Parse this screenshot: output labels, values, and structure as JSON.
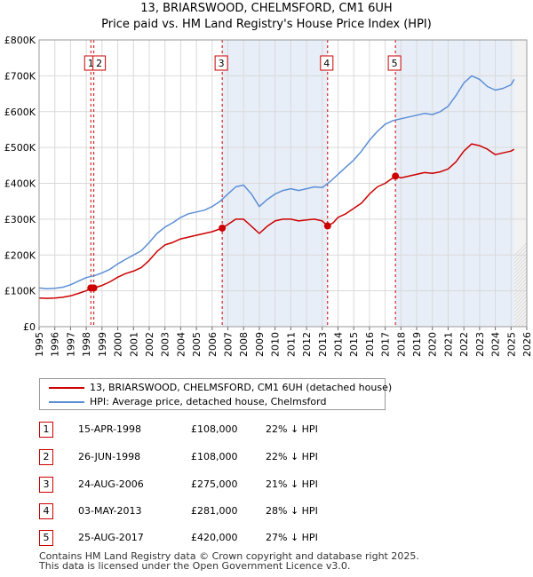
{
  "title_line1": "13, BRIARSWOOD, CHELMSFORD, CM1 6UH",
  "title_line2": "Price paid vs. HM Land Registry's House Price Index (HPI)",
  "chart_data": {
    "type": "line",
    "x_ticks": [
      "1995",
      "1996",
      "1997",
      "1998",
      "1999",
      "2000",
      "2001",
      "2002",
      "2003",
      "2004",
      "2005",
      "2006",
      "2007",
      "2008",
      "2009",
      "2010",
      "2011",
      "2012",
      "2013",
      "2014",
      "2015",
      "2016",
      "2017",
      "2018",
      "2019",
      "2020",
      "2021",
      "2022",
      "2023",
      "2024",
      "2025",
      "2026"
    ],
    "y_ticks": [
      "£0",
      "£100K",
      "£200K",
      "£300K",
      "£400K",
      "£500K",
      "£600K",
      "£700K",
      "£800K"
    ],
    "xlim": [
      1995,
      2026
    ],
    "ylim": [
      0,
      800000
    ],
    "grid": true,
    "colors": {
      "property": "#cc0000",
      "hpi": "#5b8fd6",
      "shade": "#e8eef8",
      "vline": "#cc0000"
    },
    "series": [
      {
        "name": "13, BRIARSWOOD, CHELMSFORD, CM1 6UH (detached house)",
        "x": [
          1995.0,
          1995.5,
          1996.0,
          1996.5,
          1997.0,
          1997.5,
          1998.0,
          1998.29,
          1998.48,
          1999.0,
          1999.5,
          2000.0,
          2000.5,
          2001.0,
          2001.5,
          2002.0,
          2002.5,
          2003.0,
          2003.5,
          2004.0,
          2004.5,
          2005.0,
          2005.5,
          2006.0,
          2006.64,
          2007.0,
          2007.5,
          2008.0,
          2008.5,
          2009.0,
          2009.5,
          2010.0,
          2010.5,
          2011.0,
          2011.5,
          2012.0,
          2012.5,
          2013.0,
          2013.34,
          2013.7,
          2014.0,
          2014.5,
          2015.0,
          2015.5,
          2016.0,
          2016.5,
          2017.0,
          2017.65,
          2018.0,
          2018.5,
          2019.0,
          2019.5,
          2020.0,
          2020.5,
          2021.0,
          2021.5,
          2022.0,
          2022.5,
          2023.0,
          2023.5,
          2024.0,
          2024.5,
          2025.0,
          2025.2
        ],
        "values": [
          80000,
          79000,
          80000,
          82000,
          86000,
          93000,
          100000,
          108000,
          108000,
          115000,
          125000,
          138000,
          148000,
          155000,
          165000,
          185000,
          210000,
          228000,
          235000,
          245000,
          250000,
          255000,
          260000,
          265000,
          275000,
          285000,
          300000,
          300000,
          280000,
          260000,
          280000,
          295000,
          300000,
          300000,
          295000,
          298000,
          300000,
          295000,
          281000,
          290000,
          305000,
          315000,
          330000,
          345000,
          370000,
          390000,
          400000,
          420000,
          415000,
          420000,
          425000,
          430000,
          428000,
          432000,
          440000,
          460000,
          490000,
          510000,
          505000,
          495000,
          480000,
          485000,
          490000,
          495000
        ]
      },
      {
        "name": "HPI: Average price, detached house, Chelmsford",
        "x": [
          1995.0,
          1995.5,
          1996.0,
          1996.5,
          1997.0,
          1997.5,
          1998.0,
          1998.5,
          1999.0,
          1999.5,
          2000.0,
          2000.5,
          2001.0,
          2001.5,
          2002.0,
          2002.5,
          2003.0,
          2003.5,
          2004.0,
          2004.5,
          2005.0,
          2005.5,
          2006.0,
          2006.5,
          2007.0,
          2007.5,
          2008.0,
          2008.5,
          2009.0,
          2009.5,
          2010.0,
          2010.5,
          2011.0,
          2011.5,
          2012.0,
          2012.5,
          2013.0,
          2013.5,
          2014.0,
          2014.5,
          2015.0,
          2015.5,
          2016.0,
          2016.5,
          2017.0,
          2017.5,
          2018.0,
          2018.5,
          2019.0,
          2019.5,
          2020.0,
          2020.5,
          2021.0,
          2021.5,
          2022.0,
          2022.5,
          2023.0,
          2023.5,
          2024.0,
          2024.5,
          2025.0,
          2025.2
        ],
        "values": [
          108000,
          106000,
          107000,
          110000,
          117000,
          127000,
          137000,
          142000,
          150000,
          160000,
          175000,
          188000,
          200000,
          212000,
          235000,
          260000,
          278000,
          290000,
          305000,
          315000,
          320000,
          325000,
          335000,
          350000,
          370000,
          390000,
          395000,
          370000,
          335000,
          355000,
          370000,
          380000,
          385000,
          380000,
          385000,
          390000,
          388000,
          405000,
          425000,
          445000,
          465000,
          490000,
          520000,
          545000,
          565000,
          575000,
          580000,
          585000,
          590000,
          595000,
          592000,
          600000,
          615000,
          645000,
          680000,
          700000,
          690000,
          670000,
          660000,
          665000,
          675000,
          690000
        ]
      }
    ],
    "sales": [
      {
        "id": "1",
        "x": 1998.29,
        "value": 108000
      },
      {
        "id": "2",
        "x": 1998.48,
        "value": 108000
      },
      {
        "id": "3",
        "x": 2006.64,
        "value": 275000
      },
      {
        "id": "4",
        "x": 2013.34,
        "value": 281000
      },
      {
        "id": "5",
        "x": 2017.65,
        "value": 420000
      }
    ],
    "shaded_spans": [
      [
        2006.64,
        2013.34
      ],
      [
        2017.65,
        2025.2
      ]
    ],
    "future_from": 2025.2
  },
  "legend": {
    "property_label": "13, BRIARSWOOD, CHELMSFORD, CM1 6UH (detached house)",
    "hpi_label": "HPI: Average price, detached house, Chelmsford"
  },
  "sales_table": [
    {
      "num": "1",
      "date": "15-APR-1998",
      "price": "£108,000",
      "hpi": "22% ↓ HPI"
    },
    {
      "num": "2",
      "date": "26-JUN-1998",
      "price": "£108,000",
      "hpi": "22% ↓ HPI"
    },
    {
      "num": "3",
      "date": "24-AUG-2006",
      "price": "£275,000",
      "hpi": "21% ↓ HPI"
    },
    {
      "num": "4",
      "date": "03-MAY-2013",
      "price": "£281,000",
      "hpi": "28% ↓ HPI"
    },
    {
      "num": "5",
      "date": "25-AUG-2017",
      "price": "£420,000",
      "hpi": "27% ↓ HPI"
    }
  ],
  "footer": {
    "line1": "Contains HM Land Registry data © Crown copyright and database right 2025.",
    "line2": "This data is licensed under the Open Government Licence v3.0."
  }
}
